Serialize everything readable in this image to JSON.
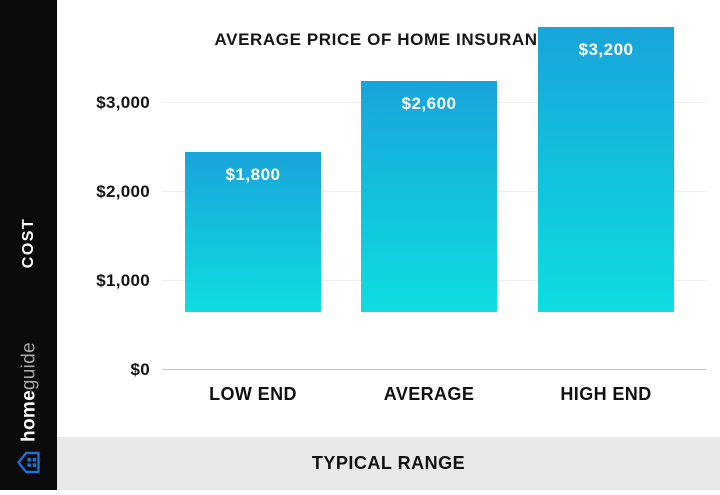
{
  "title": "AVERAGE PRICE OF HOME INSURANCE",
  "sidebar": {
    "axis_label": "COST",
    "brand": {
      "bold": "home",
      "light": "guide",
      "icon": "house-icon"
    }
  },
  "footer": {
    "label": "TYPICAL RANGE"
  },
  "colors": {
    "sidebar_bg": "#0b0b0b",
    "footer_bg": "#e9e9e9",
    "bar_gradient_top": "#18a4da",
    "bar_gradient_bottom": "#0edde0",
    "brand_icon_blue": "#1d71d6",
    "gridline": "#ededed",
    "baseline": "#cccccc",
    "text_dark": "#141414",
    "bar_value_text": "#ffffff"
  },
  "chart_data": {
    "type": "bar",
    "title": "AVERAGE PRICE OF HOME INSURANCE",
    "categories": [
      "LOW END",
      "AVERAGE",
      "HIGH END"
    ],
    "values": [
      1800,
      2600,
      3200
    ],
    "value_labels": [
      "$1,800",
      "$2,600",
      "$3,200"
    ],
    "xlabel": "TYPICAL RANGE",
    "ylabel": "COST",
    "ylim": [
      0,
      3200
    ],
    "y_ticks": [
      0,
      1000,
      2000,
      3000
    ],
    "y_tick_labels": [
      "$0",
      "$1,000",
      "$2,000",
      "$3,000"
    ],
    "grid": true,
    "legend": false,
    "bar_orientation": "vertical"
  }
}
